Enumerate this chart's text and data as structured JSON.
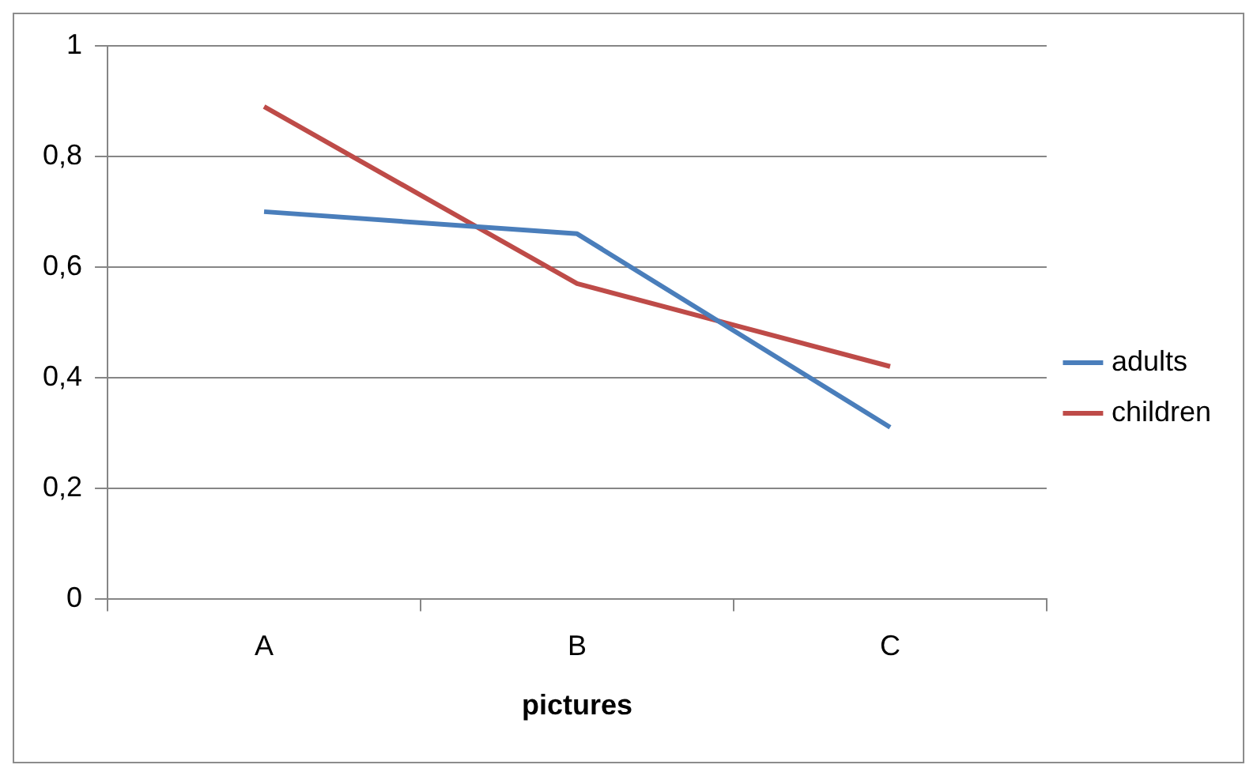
{
  "chart_data": {
    "type": "line",
    "xlabel": "pictures",
    "categories": [
      "A",
      "B",
      "C"
    ],
    "series": [
      {
        "name": "adults",
        "color": "#4a7ebb",
        "values": [
          0.7,
          0.66,
          0.31
        ]
      },
      {
        "name": "children",
        "color": "#be4b48",
        "values": [
          0.89,
          0.57,
          0.42
        ]
      }
    ],
    "ylim": [
      0,
      1
    ],
    "yticks": [
      0,
      {
        "value": 0.2,
        "label": "0,2"
      },
      {
        "value": 0.4,
        "label": "0,4"
      },
      {
        "value": 0.6,
        "label": "0,6"
      },
      {
        "value": 0.8,
        "label": "0,8"
      },
      1
    ],
    "grid": "y",
    "legend": "right",
    "marker": "none",
    "line_style": "solid"
  }
}
